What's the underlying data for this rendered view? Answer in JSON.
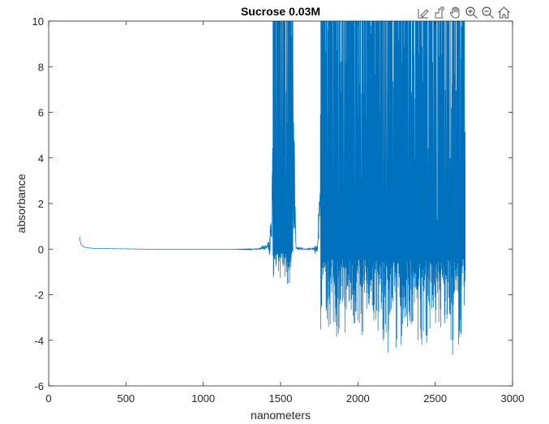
{
  "chart_data": {
    "type": "line",
    "title": "Sucrose 0.03M",
    "xlabel": "nanometers",
    "ylabel": "absorbance",
    "xlim": [
      0,
      3000
    ],
    "ylim": [
      -6,
      10
    ],
    "xticks": [
      0,
      500,
      1000,
      1500,
      2000,
      2500,
      3000
    ],
    "yticks": [
      -6,
      -4,
      -2,
      0,
      2,
      4,
      6,
      8,
      10
    ],
    "xtick_labels": [
      "0",
      "500",
      "1000",
      "1500",
      "2000",
      "2500",
      "3000"
    ],
    "ytick_labels": [
      "-6",
      "-4",
      "-2",
      "0",
      "2",
      "4",
      "6",
      "8",
      "10"
    ],
    "grid": false,
    "legend": "none",
    "series": [
      {
        "color": "#0072bd",
        "x": [
          200,
          205,
          210,
          220,
          240,
          260,
          300,
          400,
          500,
          600,
          700,
          800,
          900,
          1000,
          1100,
          1200,
          1300,
          1350,
          1380,
          1400,
          1420,
          1440,
          1450,
          1460,
          1480,
          1500,
          1520,
          1540,
          1560,
          1580,
          1600,
          1650,
          1700,
          1740,
          1760,
          1800,
          1900,
          2000,
          2100,
          2170,
          2200,
          2300,
          2400,
          2500,
          2600,
          2650,
          2695
        ],
        "y_min": [
          0.55,
          0.3,
          0.2,
          0.12,
          0.07,
          0.05,
          0.03,
          0.02,
          0.01,
          0.0,
          -0.01,
          -0.01,
          -0.01,
          -0.01,
          -0.01,
          -0.01,
          -0.02,
          -0.05,
          -0.1,
          -0.3,
          -0.6,
          -0.8,
          -1.2,
          -1.5,
          -1.6,
          -1.4,
          -1.2,
          -2.5,
          -1.6,
          -0.5,
          -0.1,
          -0.05,
          -0.1,
          -0.3,
          -4.1,
          -3.8,
          -4.0,
          -4.2,
          -4.3,
          -5.3,
          -4.5,
          -4.5,
          -4.4,
          -4.3,
          -4.6,
          -4.8,
          -3.8
        ],
        "y_max": [
          0.55,
          0.3,
          0.2,
          0.12,
          0.07,
          0.05,
          0.03,
          0.02,
          0.01,
          0.0,
          -0.01,
          -0.01,
          -0.01,
          -0.01,
          -0.01,
          -0.01,
          0.0,
          0.05,
          0.2,
          0.4,
          0.8,
          2.0,
          10,
          10,
          10,
          10,
          10,
          10,
          10,
          10,
          0.2,
          0.05,
          0.1,
          0.3,
          10,
          10,
          10,
          10,
          10,
          10,
          10,
          10,
          10,
          10,
          10,
          10,
          10
        ]
      }
    ]
  },
  "toolbar": {
    "icons": [
      "edit-axes-icon",
      "data-cursor-icon",
      "pan-hand-icon",
      "zoom-in-icon",
      "zoom-out-icon",
      "home-icon"
    ]
  }
}
